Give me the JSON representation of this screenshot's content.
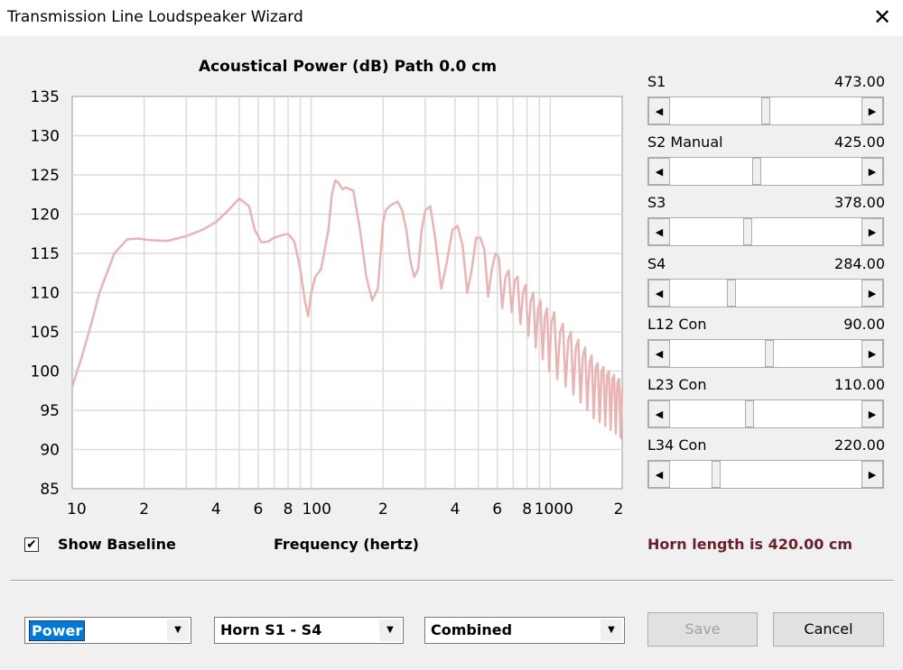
{
  "window": {
    "title": "Transmission Line Loudspeaker Wizard",
    "close_glyph": "✕"
  },
  "chart_data": {
    "type": "line",
    "title": "Acoustical Power (dB)   Path 0.0 cm",
    "xlabel": "Frequency (hertz)",
    "ylabel": "",
    "x_scale": "log",
    "xlim": [
      10,
      2000
    ],
    "ylim": [
      85,
      135
    ],
    "y_ticks": [
      "135",
      "130",
      "125",
      "120",
      "115",
      "110",
      "105",
      "100",
      "95",
      "90",
      "85"
    ],
    "x_ticks": [
      {
        "value": 10,
        "label": "10"
      },
      {
        "value": 20,
        "label": "2"
      },
      {
        "value": 40,
        "label": "4"
      },
      {
        "value": 60,
        "label": "6"
      },
      {
        "value": 80,
        "label": "8"
      },
      {
        "value": 100,
        "label": "100"
      },
      {
        "value": 200,
        "label": "2"
      },
      {
        "value": 400,
        "label": "4"
      },
      {
        "value": 600,
        "label": "6"
      },
      {
        "value": 800,
        "label": "8"
      },
      {
        "value": 1000,
        "label": "1000"
      },
      {
        "value": 2000,
        "label": "2"
      }
    ],
    "grid": true,
    "series": [
      {
        "color": "#e8b4b4",
        "x": [
          10,
          11,
          12,
          13,
          15,
          17,
          19,
          21,
          25,
          30,
          35,
          40,
          45,
          50,
          55,
          58,
          62,
          66,
          70,
          75,
          80,
          85,
          90,
          94,
          97,
          100,
          104,
          110,
          118,
          122,
          126,
          130,
          135,
          140,
          150,
          160,
          170,
          180,
          190,
          200,
          205,
          212,
          220,
          230,
          240,
          250,
          260,
          270,
          280,
          290,
          300,
          315,
          330,
          350,
          370,
          390,
          410,
          430,
          450,
          470,
          490,
          510,
          530,
          550,
          570,
          590,
          610,
          630,
          650,
          670,
          690,
          710,
          730,
          750,
          770,
          790,
          810,
          830,
          850,
          870,
          890,
          910,
          930,
          950,
          970,
          990,
          1010,
          1040,
          1070,
          1100,
          1130,
          1160,
          1190,
          1220,
          1250,
          1280,
          1310,
          1340,
          1370,
          1400,
          1430,
          1460,
          1490,
          1520,
          1550,
          1580,
          1610,
          1640,
          1670,
          1700,
          1730,
          1760,
          1790,
          1820,
          1850,
          1880,
          1910,
          1940,
          1970,
          2000
        ],
        "values": [
          98,
          102,
          106,
          110,
          115,
          116.8,
          116.9,
          116.7,
          116.6,
          117.2,
          118,
          119,
          120.5,
          122,
          121,
          118,
          116.4,
          116.5,
          117,
          117.3,
          117.5,
          116.5,
          113,
          109,
          107,
          110,
          112,
          113,
          118,
          122.5,
          124.3,
          124,
          123.2,
          123.4,
          123,
          118,
          112,
          109,
          110.5,
          119,
          120.5,
          121,
          121.3,
          121.6,
          120.5,
          118,
          114,
          112,
          113,
          118,
          120.5,
          121,
          117,
          110.5,
          114,
          118,
          118.5,
          116,
          110,
          113,
          117,
          117,
          115.5,
          109.5,
          113,
          115,
          114.5,
          108,
          112,
          112.8,
          107.5,
          111.5,
          112,
          106,
          110,
          111,
          104.5,
          109,
          110,
          103,
          108,
          109,
          101.5,
          107,
          108,
          100,
          106,
          107.5,
          99,
          105,
          106,
          98,
          104,
          105,
          97,
          103,
          104,
          96,
          102,
          103,
          95,
          101,
          102,
          94,
          100.5,
          101,
          93.5,
          100,
          100.5,
          93,
          99.5,
          100,
          92.5,
          99,
          99.5,
          92,
          98.5,
          99,
          91.5,
          98
        ]
      }
    ]
  },
  "sliders": [
    {
      "label": "S1",
      "value": "473.00",
      "position": 0.5
    },
    {
      "label": "S2  Manual",
      "value": "425.00",
      "position": 0.45
    },
    {
      "label": "S3",
      "value": "378.00",
      "position": 0.4
    },
    {
      "label": "S4",
      "value": "284.00",
      "position": 0.31
    },
    {
      "label": "L12  Con",
      "value": "90.00",
      "position": 0.52
    },
    {
      "label": "L23  Con",
      "value": "110.00",
      "position": 0.41
    },
    {
      "label": "L34  Con",
      "value": "220.00",
      "position": 0.23
    }
  ],
  "horn_length_text": "Horn length is 420.00 cm",
  "show_baseline": {
    "label": "Show Baseline",
    "checked": true,
    "check_glyph": "✔"
  },
  "combos": [
    {
      "value": "Power",
      "selected": true
    },
    {
      "value": "Horn S1 - S4",
      "selected": false
    },
    {
      "value": "Combined",
      "selected": false
    }
  ],
  "buttons": {
    "save": "Save",
    "cancel": "Cancel"
  },
  "icons": {
    "left_arrow": "◀",
    "right_arrow": "▶",
    "down_arrow": "▼"
  },
  "colors": {
    "curve": "#e8b4b4",
    "grid": "#d8d8d8",
    "horn_text": "#6b1f2a",
    "selection": "#0078d7"
  }
}
